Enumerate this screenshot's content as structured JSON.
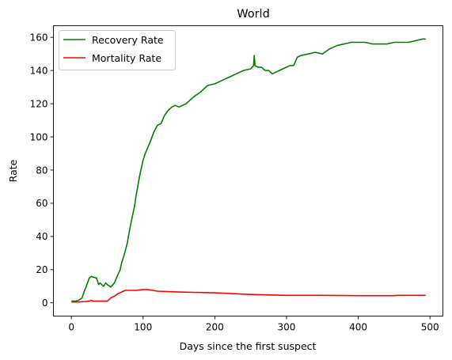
{
  "chart_data": {
    "type": "line",
    "title": "World",
    "xlabel": "Days since the first suspect",
    "ylabel": "Rate",
    "xlim": [
      -25,
      518
    ],
    "ylim": [
      -8,
      167
    ],
    "xticks": [
      0,
      100,
      200,
      300,
      400,
      500
    ],
    "yticks": [
      0,
      20,
      40,
      60,
      80,
      100,
      120,
      140,
      160
    ],
    "grid": false,
    "legend_position": "top-left",
    "series": [
      {
        "name": "Recovery Rate",
        "color": "#008000",
        "x": [
          0,
          5,
          10,
          15,
          18,
          20,
          25,
          28,
          30,
          35,
          38,
          40,
          45,
          48,
          50,
          55,
          58,
          60,
          65,
          68,
          70,
          73,
          75,
          78,
          80,
          83,
          85,
          88,
          90,
          93,
          95,
          98,
          100,
          103,
          105,
          110,
          115,
          120,
          125,
          130,
          135,
          140,
          145,
          150,
          155,
          160,
          165,
          170,
          180,
          190,
          200,
          205,
          210,
          220,
          230,
          240,
          250,
          254,
          255,
          256,
          260,
          265,
          270,
          275,
          280,
          285,
          290,
          295,
          300,
          305,
          310,
          315,
          320,
          330,
          340,
          350,
          360,
          370,
          380,
          390,
          400,
          410,
          420,
          430,
          440,
          450,
          460,
          470,
          480,
          490,
          494
        ],
        "y": [
          1,
          1,
          1.5,
          3,
          7,
          9,
          15,
          16,
          15.5,
          15,
          11,
          12,
          10,
          12,
          11,
          9.5,
          11,
          12,
          17,
          20,
          24,
          28,
          31,
          36,
          41,
          48,
          52,
          58,
          64,
          71,
          76,
          82,
          86,
          90,
          92,
          97,
          103,
          107,
          108,
          113,
          116,
          118,
          119,
          118,
          119,
          120,
          122,
          124,
          127,
          131,
          132,
          133,
          134,
          136,
          138,
          140,
          141,
          143,
          149,
          143,
          142,
          142,
          140,
          140,
          138,
          139,
          140,
          141,
          142,
          143,
          143,
          148,
          149,
          150,
          151,
          150,
          153,
          155,
          156,
          157,
          157,
          157,
          156,
          156,
          156,
          157,
          157,
          157,
          158,
          159,
          159
        ]
      },
      {
        "name": "Mortality Rate",
        "color": "#ff0000",
        "x": [
          0,
          10,
          20,
          25,
          28,
          30,
          35,
          40,
          45,
          50,
          55,
          60,
          65,
          70,
          75,
          80,
          90,
          100,
          105,
          110,
          120,
          150,
          200,
          250,
          300,
          350,
          400,
          450,
          455,
          494
        ],
        "y": [
          0.5,
          0.5,
          0.8,
          1,
          1.5,
          1,
          1,
          1,
          1,
          1,
          3,
          4,
          5.5,
          6.5,
          7.5,
          7.5,
          7.5,
          8,
          8,
          7.8,
          7,
          6.5,
          6,
          5,
          4.5,
          4.5,
          4.3,
          4.3,
          4.5,
          4.5
        ]
      }
    ]
  }
}
